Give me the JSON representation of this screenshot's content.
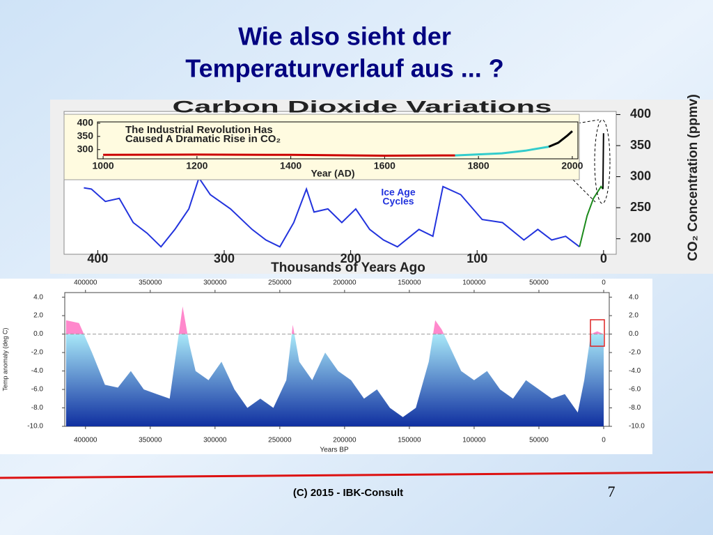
{
  "slide": {
    "title_lines": [
      "Wie also sieht der",
      "Temperaturverlauf aus ... ?"
    ],
    "footer": "(C) 2015 - IBK-Consult",
    "page_number": "7"
  },
  "chart_data": [
    {
      "type": "line",
      "title": "Carbon Dioxide Variations",
      "x_label": "Thousands of Years Ago",
      "y_label": "CO₂ Concentration (ppmv)",
      "annotation": [
        "Ice Age",
        "Cycles"
      ],
      "xlim": [
        425,
        -10
      ],
      "xticks": [
        400,
        300,
        200,
        100,
        0
      ],
      "ylim": [
        175,
        405
      ],
      "yticks": [
        200,
        250,
        300,
        350,
        400
      ],
      "series": [
        {
          "color": "#2233dd",
          "x": [
            411,
            405,
            394,
            383,
            372,
            361,
            350,
            339,
            328,
            320,
            311,
            295,
            278,
            267,
            256,
            245,
            235,
            229,
            218,
            207,
            196,
            185,
            174,
            163,
            146,
            135,
            127,
            113,
            96,
            80,
            63,
            52,
            41,
            30,
            19
          ],
          "values": [
            282,
            280,
            260,
            265,
            226,
            209,
            187,
            215,
            248,
            298,
            271,
            248,
            215,
            198,
            187,
            226,
            280,
            243,
            248,
            226,
            248,
            215,
            198,
            187,
            215,
            204,
            284,
            271,
            231,
            226,
            198,
            215,
            198,
            204,
            187
          ]
        },
        {
          "color": "#1a8a1a",
          "x": [
            19,
            13,
            8,
            2,
            0.5
          ],
          "values": [
            187,
            237,
            265,
            284,
            280
          ]
        },
        {
          "color": "#000000",
          "x": [
            0.5,
            0
          ],
          "values": [
            280,
            370
          ]
        }
      ],
      "inset": {
        "title_lines": [
          "The Industrial Revolution Has",
          "Caused A Dramatic Rise in CO₂"
        ],
        "x_label": "Year (AD)",
        "xlim": [
          988,
          2012
        ],
        "xticks": [
          1000,
          1200,
          1400,
          1600,
          1800,
          2000
        ],
        "ylim": [
          265,
          405
        ],
        "yticks": [
          300,
          350,
          400
        ],
        "series": [
          {
            "color": "#cc0000",
            "x": [
              1000,
              1200,
              1400,
              1600,
              1750
            ],
            "values": [
              280,
              281,
              280,
              277,
              278
            ]
          },
          {
            "color": "#33cccc",
            "x": [
              1750,
              1800,
              1850,
              1900,
              1950
            ],
            "values": [
              278,
              282,
              286,
              296,
              311
            ]
          },
          {
            "color": "#000000",
            "x": [
              1950,
              1970,
              1990,
              2000
            ],
            "values": [
              311,
              326,
              354,
              370
            ]
          }
        ]
      }
    },
    {
      "type": "area",
      "x_label": "Years BP",
      "y_label": "Temp anomaly (deg C)",
      "xlim": [
        416000,
        -4300
      ],
      "xticks": [
        400000,
        350000,
        300000,
        250000,
        200000,
        150000,
        100000,
        50000,
        0
      ],
      "ylim": [
        -10,
        4.5
      ],
      "yticks": [
        {
          "value": 4,
          "label": "4.0"
        },
        {
          "value": 2,
          "label": "2.0"
        },
        {
          "value": 0,
          "label": "0.0"
        },
        {
          "value": -2,
          "label": "-2.0"
        },
        {
          "value": -4,
          "label": "-4.0"
        },
        {
          "value": -6,
          "label": "-6.0"
        },
        {
          "value": -8,
          "label": "-8.0"
        },
        {
          "value": -10,
          "label": "-10.0"
        }
      ],
      "series": [
        {
          "color": "#1030a0",
          "warm_color": "#ff88cc",
          "x": [
            415000,
            405000,
            395000,
            385000,
            375000,
            365000,
            355000,
            345000,
            335000,
            330000,
            325000,
            320000,
            315000,
            305000,
            295000,
            285000,
            275000,
            265000,
            255000,
            245000,
            240000,
            235000,
            225000,
            215000,
            205000,
            195000,
            185000,
            175000,
            165000,
            155000,
            145000,
            135000,
            130000,
            125000,
            120000,
            110000,
            100000,
            90000,
            80000,
            70000,
            60000,
            50000,
            40000,
            30000,
            20000,
            15000,
            10000,
            5000,
            0
          ],
          "values": [
            1.5,
            1.2,
            -2,
            -5.5,
            -5.8,
            -4,
            -6,
            -6.5,
            -7,
            -2,
            3,
            -1,
            -4,
            -5,
            -3,
            -6,
            -8,
            -7,
            -8,
            -5,
            1,
            -3,
            -5,
            -2,
            -4,
            -5,
            -7,
            -6,
            -8,
            -9,
            -8,
            -3,
            1.5,
            0.5,
            -1,
            -4,
            -5,
            -4,
            -6,
            -7,
            -5,
            -6,
            -7,
            -6.5,
            -8.5,
            -5,
            0,
            0.3,
            0
          ]
        }
      ]
    }
  ]
}
